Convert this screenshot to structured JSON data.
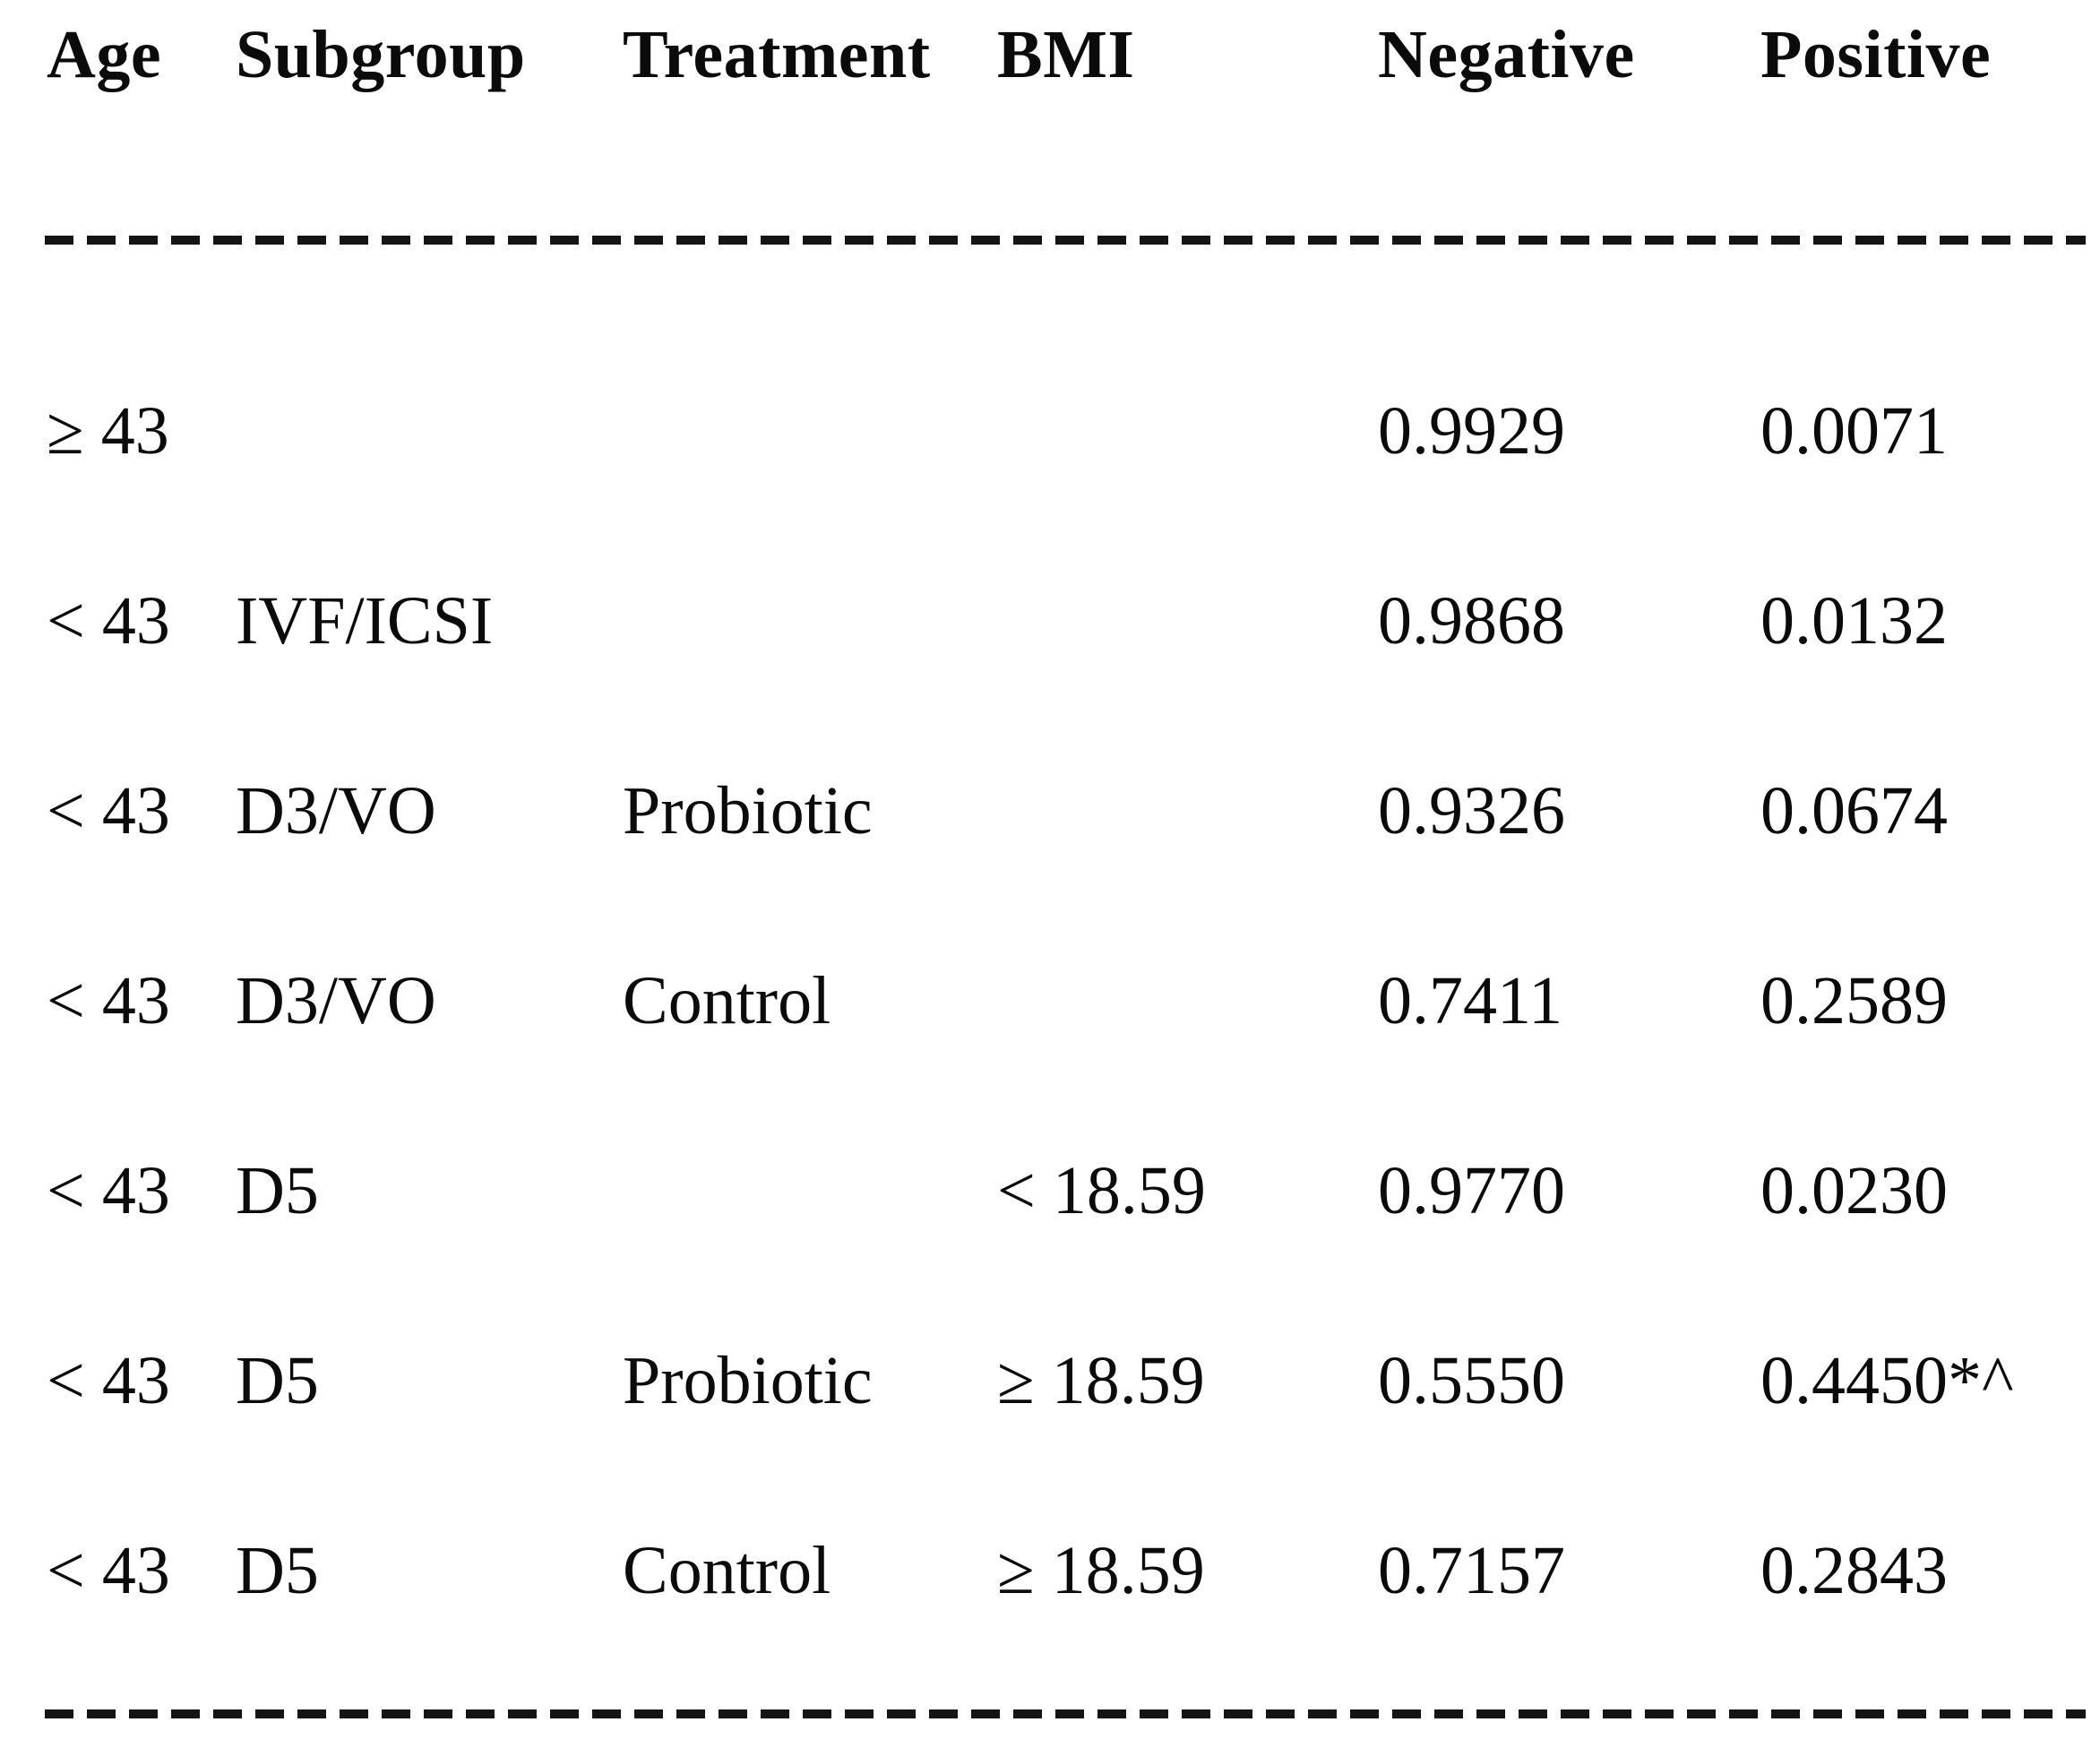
{
  "table": {
    "headers": {
      "age": "Age",
      "subgroup": "Subgroup",
      "treatment": "Treatment",
      "bmi": "BMI",
      "negative": "Negative",
      "positive": "Positive"
    },
    "rows": [
      {
        "age": "≥ 43",
        "subgroup": "",
        "treatment": "",
        "bmi": "",
        "negative": "0.9929",
        "positive": "0.0071"
      },
      {
        "age": "< 43",
        "subgroup": "IVF/ICSI",
        "treatment": "",
        "bmi": "",
        "negative": "0.9868",
        "positive": "0.0132"
      },
      {
        "age": "< 43",
        "subgroup": "D3/VO",
        "treatment": "Probiotic",
        "bmi": "",
        "negative": "0.9326",
        "positive": "0.0674"
      },
      {
        "age": "< 43",
        "subgroup": "D3/VO",
        "treatment": "Control",
        "bmi": "",
        "negative": "0.7411",
        "positive": "0.2589"
      },
      {
        "age": "< 43",
        "subgroup": "D5",
        "treatment": "",
        "bmi": "< 18.59",
        "negative": "0.9770",
        "positive": "0.0230"
      },
      {
        "age": "< 43",
        "subgroup": "D5",
        "treatment": "Probiotic",
        "bmi": "≥ 18.59",
        "negative": "0.5550",
        "positive": "0.4450*^"
      },
      {
        "age": "< 43",
        "subgroup": "D5",
        "treatment": "Control",
        "bmi": "≥ 18.59",
        "negative": "0.7157",
        "positive": "0.2843"
      }
    ]
  },
  "chart_data": {
    "type": "table",
    "columns": [
      "Age",
      "Subgroup",
      "Treatment",
      "BMI",
      "Negative",
      "Positive"
    ],
    "rows": [
      [
        "≥ 43",
        "",
        "",
        "",
        0.9929,
        0.0071
      ],
      [
        "< 43",
        "IVF/ICSI",
        "",
        "",
        0.9868,
        0.0132
      ],
      [
        "< 43",
        "D3/VO",
        "Probiotic",
        "",
        0.9326,
        0.0674
      ],
      [
        "< 43",
        "D3/VO",
        "Control",
        "",
        0.7411,
        0.2589
      ],
      [
        "< 43",
        "D5",
        "",
        "< 18.59",
        0.977,
        0.023
      ],
      [
        "< 43",
        "D5",
        "Probiotic",
        "≥ 18.59",
        0.555,
        0.445
      ],
      [
        "< 43",
        "D5",
        "Control",
        "≥ 18.59",
        0.7157,
        0.2843
      ]
    ],
    "annotations": [
      "0.4450 flagged with *^ significance markers"
    ]
  }
}
